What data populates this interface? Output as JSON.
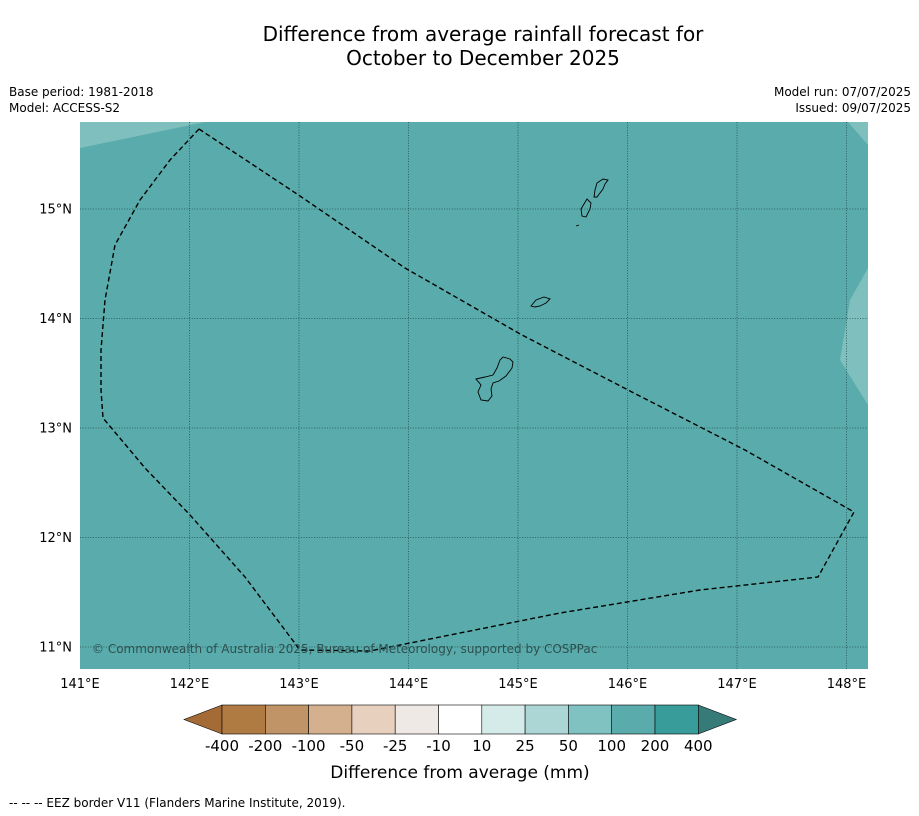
{
  "title": {
    "line1": "Difference from average rainfall forecast for",
    "line2": "October to December 2025"
  },
  "info": {
    "base_period": "Base period: 1981-2018",
    "model": "Model: ACCESS-S2",
    "model_run": "Model run: 07/07/2025",
    "issued": "Issued: 09/07/2025"
  },
  "map": {
    "lon_ticks": [
      "141°E",
      "142°E",
      "143°E",
      "144°E",
      "145°E",
      "146°E",
      "147°E",
      "148°E"
    ],
    "lat_ticks": [
      "15°N",
      "14°N",
      "13°N",
      "12°N",
      "11°N"
    ],
    "copyright": "© Commonwealth of Australia 2025, Bureau of Meteorology, supported by COSPPac",
    "colors": {
      "main_fill": "#5aabab",
      "light_fill": "#7fc0be",
      "grid": "#1f4f4f",
      "coast": "#000000",
      "eez": "#000000"
    }
  },
  "colorbar": {
    "labels": [
      "-400",
      "-200",
      "-100",
      "-50",
      "-25",
      "-10",
      "10",
      "25",
      "50",
      "100",
      "200",
      "400"
    ],
    "colors": [
      "#a56b37",
      "#b07a43",
      "#c19468",
      "#d4b08e",
      "#e8d0bf",
      "#efe9e6",
      "#ffffff",
      "#d5ebe9",
      "#acd6d5",
      "#80c1c1",
      "#5aabab",
      "#389c9a",
      "#367b78"
    ],
    "label": "Difference from average (mm)"
  },
  "footnote": "-- -- -- EEZ border V11 (Flanders Marine Institute, 2019)."
}
